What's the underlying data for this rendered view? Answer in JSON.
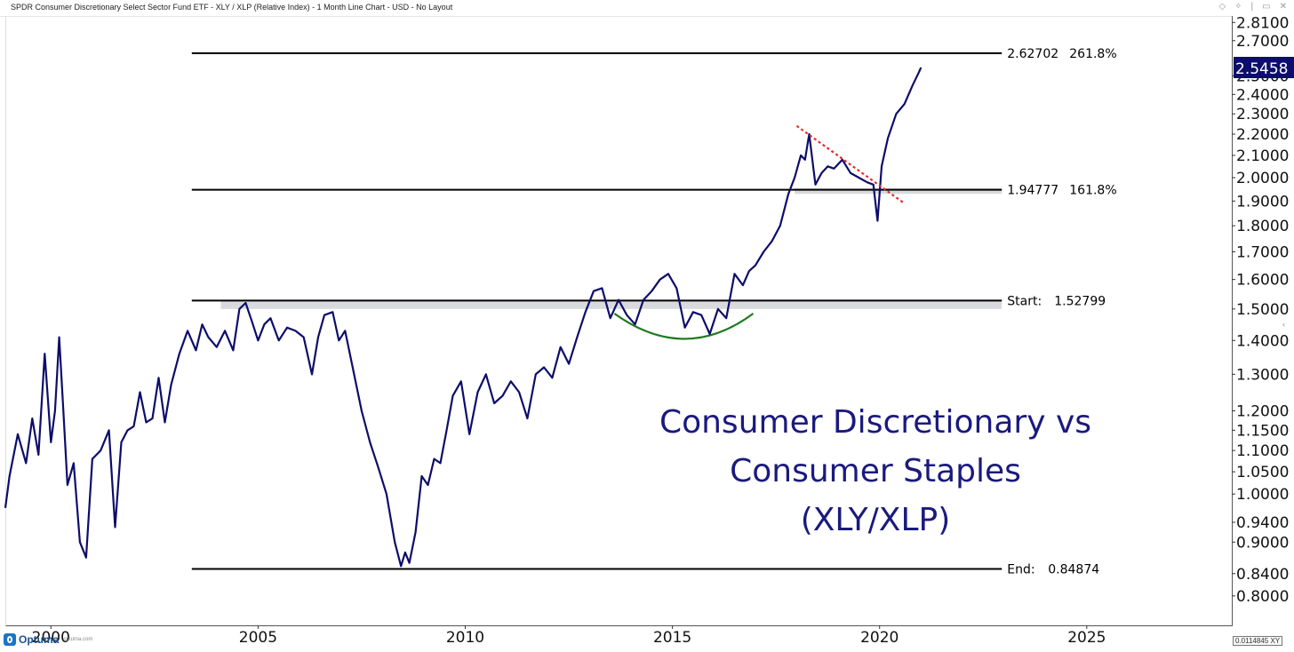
{
  "window": {
    "title": "SPDR Consumer Discretionary Select Sector Fund ETF - XLY / XLP (Relative Index) - 1 Month Line Chart - USD - No Layout",
    "controls": [
      "◇",
      "✧",
      "|",
      "▭",
      "✕"
    ]
  },
  "annotation": {
    "line1": "Consumer Discretionary vs",
    "line2": "Consumer Staples",
    "line3": "(XLY/XLP)"
  },
  "footer": {
    "brand": "Optuma",
    "site": "optuma.com",
    "readout": "0.0114845",
    "readout_mode": "XY"
  },
  "colors": {
    "series": "#0d0d6b",
    "level_line": "#000000",
    "zone": "#d9dadd",
    "trendline": "#e8292b",
    "arc": "#1f7a1f",
    "last_tag_bg": "#0d0d6b",
    "annotation": "#1a1a7e"
  },
  "chart_data": {
    "type": "line",
    "scale": "log",
    "title": "XLY / XLP (Relative Index) - 1 Month Line Chart",
    "x_ticks": [
      2000,
      2005,
      2010,
      2015,
      2020,
      2025
    ],
    "x_tick_labels": [
      "2000",
      "2005",
      "2010",
      "2015",
      "2020",
      "2025"
    ],
    "xlim": [
      1998.9,
      2028.5
    ],
    "ylim": [
      0.75,
      2.85
    ],
    "y_ticks": [
      0.8,
      0.84,
      0.9,
      0.94,
      1.0,
      1.05,
      1.1,
      1.15,
      1.2,
      1.3,
      1.4,
      1.5,
      1.6,
      1.7,
      1.8,
      1.9,
      2.0,
      2.1,
      2.2,
      2.3,
      2.4,
      2.5,
      2.7,
      2.81
    ],
    "y_tick_labels": [
      "0.8000",
      "0.8400",
      "0.9000",
      "0.9400",
      "1.0000",
      "1.0500",
      "1.1000",
      "1.1500",
      "1.2000",
      "1.3000",
      "1.4000",
      "1.5000",
      "1.6000",
      "1.7000",
      "1.8000",
      "1.9000",
      "2.0000",
      "2.1000",
      "2.2000",
      "2.3000",
      "2.4000",
      "2.5000",
      "2.7000",
      "2.8100"
    ],
    "last_value": 2.5458,
    "last_value_label": "2.5458",
    "series": [
      {
        "name": "XLY/XLP",
        "x": [
          1998.9,
          1999.0,
          1999.2,
          1999.4,
          1999.55,
          1999.7,
          1999.85,
          2000.0,
          2000.1,
          2000.2,
          2000.3,
          2000.4,
          2000.55,
          2000.7,
          2000.85,
          2001.0,
          2001.2,
          2001.4,
          2001.55,
          2001.7,
          2001.85,
          2002.0,
          2002.15,
          2002.3,
          2002.45,
          2002.6,
          2002.75,
          2002.9,
          2003.1,
          2003.3,
          2003.5,
          2003.65,
          2003.8,
          2004.0,
          2004.2,
          2004.4,
          2004.55,
          2004.7,
          2004.85,
          2005.0,
          2005.15,
          2005.3,
          2005.5,
          2005.7,
          2005.9,
          2006.1,
          2006.3,
          2006.45,
          2006.6,
          2006.8,
          2006.95,
          2007.1,
          2007.3,
          2007.5,
          2007.7,
          2007.9,
          2008.1,
          2008.3,
          2008.45,
          2008.55,
          2008.65,
          2008.8,
          2008.95,
          2009.1,
          2009.25,
          2009.4,
          2009.55,
          2009.7,
          2009.9,
          2010.1,
          2010.3,
          2010.5,
          2010.7,
          2010.9,
          2011.1,
          2011.3,
          2011.5,
          2011.7,
          2011.9,
          2012.1,
          2012.3,
          2012.5,
          2012.7,
          2012.9,
          2013.1,
          2013.3,
          2013.5,
          2013.7,
          2013.9,
          2014.1,
          2014.3,
          2014.5,
          2014.7,
          2014.9,
          2015.1,
          2015.3,
          2015.5,
          2015.7,
          2015.9,
          2016.1,
          2016.3,
          2016.5,
          2016.7,
          2016.85,
          2017.0,
          2017.2,
          2017.4,
          2017.6,
          2017.8,
          2017.95,
          2018.1,
          2018.2,
          2018.3,
          2018.45,
          2018.6,
          2018.75,
          2018.9,
          2019.1,
          2019.3,
          2019.5,
          2019.7,
          2019.85,
          2019.95,
          2020.05,
          2020.2,
          2020.4,
          2020.6,
          2020.8,
          2020.95,
          2021.0
        ],
        "values": [
          0.97,
          1.04,
          1.14,
          1.07,
          1.18,
          1.09,
          1.36,
          1.12,
          1.2,
          1.41,
          1.2,
          1.02,
          1.07,
          0.9,
          0.87,
          1.08,
          1.1,
          1.15,
          0.93,
          1.12,
          1.15,
          1.16,
          1.25,
          1.17,
          1.18,
          1.29,
          1.17,
          1.27,
          1.36,
          1.43,
          1.37,
          1.45,
          1.41,
          1.38,
          1.43,
          1.37,
          1.5,
          1.52,
          1.46,
          1.4,
          1.45,
          1.47,
          1.4,
          1.44,
          1.43,
          1.41,
          1.3,
          1.41,
          1.48,
          1.49,
          1.4,
          1.43,
          1.31,
          1.2,
          1.12,
          1.06,
          1.0,
          0.9,
          0.854,
          0.88,
          0.86,
          0.92,
          1.04,
          1.02,
          1.08,
          1.07,
          1.15,
          1.24,
          1.28,
          1.14,
          1.25,
          1.3,
          1.22,
          1.24,
          1.28,
          1.25,
          1.18,
          1.3,
          1.32,
          1.29,
          1.38,
          1.33,
          1.41,
          1.49,
          1.56,
          1.57,
          1.47,
          1.53,
          1.48,
          1.45,
          1.53,
          1.56,
          1.6,
          1.62,
          1.57,
          1.44,
          1.49,
          1.48,
          1.42,
          1.5,
          1.47,
          1.62,
          1.58,
          1.63,
          1.65,
          1.7,
          1.74,
          1.8,
          1.93,
          2.0,
          2.1,
          2.08,
          2.2,
          1.97,
          2.02,
          2.05,
          2.04,
          2.08,
          2.02,
          2.0,
          1.98,
          1.97,
          1.82,
          2.05,
          2.18,
          2.3,
          2.35,
          2.45,
          2.52,
          2.5458
        ]
      }
    ],
    "levels": [
      {
        "name": "261.8%",
        "value": 2.62702,
        "value_label": "2.62702",
        "label": "261.8%",
        "x_start": 2003.4,
        "x_end": 2022.95
      },
      {
        "name": "161.8%",
        "value": 1.94777,
        "value_label": "1.94777",
        "label": "161.8%",
        "x_start": 2003.4,
        "x_end": 2022.95
      },
      {
        "name": "Start",
        "value": 1.52799,
        "value_label": "1.52799",
        "label": "Start:",
        "x_start": 2003.4,
        "x_end": 2022.95
      },
      {
        "name": "End",
        "value": 0.84874,
        "value_label": "0.84874",
        "label": "End:",
        "x_start": 2003.4,
        "x_end": 2022.95
      }
    ],
    "zones": [
      {
        "x_start": 2004.1,
        "x_end": 2022.95,
        "y_low": 1.5,
        "y_high": 1.53
      },
      {
        "x_start": 2017.95,
        "x_end": 2022.95,
        "y_low": 1.93,
        "y_high": 1.955
      }
    ],
    "trendline": {
      "x": [
        2018.0,
        2020.6
      ],
      "y": [
        2.24,
        1.89
      ]
    },
    "arc": {
      "x_start": 2013.6,
      "x_end": 2016.95,
      "x_mid": 2015.3,
      "y_ends": 1.485,
      "y_bottom": 1.405
    }
  }
}
